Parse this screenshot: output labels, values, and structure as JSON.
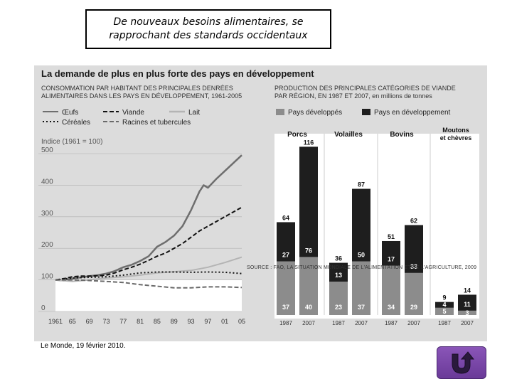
{
  "slide": {
    "title_line1": "De nouveaux besoins alimentaires, se",
    "title_line2": "rapprochant des standards occidentaux",
    "credit": "Le Monde, 19 février 2010.",
    "nav_icon": "u-turn-return-icon"
  },
  "figure": {
    "title": "La demande de plus en plus forte des pays en développement",
    "left_subtitle_line1": "CONSOMMATION PAR HABITANT DES PRINCIPALES DENRÉES",
    "left_subtitle_line2": "ALIMENTAIRES DANS LES PAYS EN DÉVELOPPEMENT, 1961-2005",
    "right_subtitle_line1": "PRODUCTION DES PRINCIPALES CATÉGORIES DE VIANDE",
    "right_subtitle_line2": "PAR RÉGION, EN 1987 ET 2007, en millions de tonnes",
    "source": "SOURCE : FAO, LA SITUATION MONDIALE DE L'ALIMENTATION ET DE L'AGRICULTURE, 2009"
  },
  "colors": {
    "developed": "#8c8c8c",
    "developing": "#1e1e1e",
    "oeufs": "#6e6e6e",
    "viande": "#111111",
    "lait": "#b4b4b4",
    "cereales": "#111111",
    "racines": "#6a6a6a",
    "panel_bg": "#dcdcdc",
    "nav": "#7b4aa8"
  },
  "chart_data": [
    {
      "type": "line",
      "index_label": "Indice (1961 = 100)",
      "x_ticks": [
        "1961",
        "65",
        "69",
        "73",
        "77",
        "81",
        "85",
        "89",
        "93",
        "97",
        "01",
        "05"
      ],
      "ylim": [
        0,
        500
      ],
      "y_ticks": [
        "0",
        "100",
        "200",
        "300",
        "400",
        "500"
      ],
      "legend_position": "top",
      "series": [
        {
          "name": "Œufs",
          "style": "solid",
          "color_key": "oeufs",
          "x": [
            1961,
            1963,
            1965,
            1967,
            1969,
            1971,
            1973,
            1975,
            1977,
            1979,
            1981,
            1983,
            1985,
            1987,
            1989,
            1991,
            1993,
            1995,
            1996,
            1997,
            1999,
            2001,
            2003,
            2005
          ],
          "y": [
            100,
            98,
            104,
            108,
            112,
            115,
            120,
            128,
            140,
            148,
            160,
            175,
            205,
            220,
            240,
            270,
            320,
            380,
            400,
            392,
            420,
            445,
            470,
            495
          ]
        },
        {
          "name": "Viande",
          "style": "dashed",
          "color_key": "viande",
          "x": [
            1961,
            1963,
            1965,
            1967,
            1969,
            1971,
            1973,
            1975,
            1977,
            1979,
            1981,
            1983,
            1985,
            1987,
            1989,
            1991,
            1993,
            1995,
            1997,
            1999,
            2001,
            2003,
            2005
          ],
          "y": [
            100,
            104,
            110,
            112,
            112,
            113,
            115,
            122,
            132,
            140,
            150,
            162,
            175,
            185,
            200,
            215,
            235,
            255,
            270,
            285,
            300,
            315,
            330
          ]
        },
        {
          "name": "Lait",
          "style": "solid",
          "color_key": "lait",
          "x": [
            1961,
            1965,
            1969,
            1973,
            1977,
            1981,
            1985,
            1989,
            1993,
            1997,
            2001,
            2005
          ],
          "y": [
            100,
            95,
            100,
            106,
            110,
            115,
            122,
            126,
            130,
            140,
            155,
            172
          ]
        },
        {
          "name": "Céréales",
          "style": "dotted",
          "color_key": "cereales",
          "x": [
            1961,
            1965,
            1969,
            1973,
            1977,
            1981,
            1985,
            1989,
            1993,
            1997,
            2001,
            2005
          ],
          "y": [
            100,
            106,
            108,
            110,
            115,
            122,
            125,
            125,
            124,
            125,
            124,
            120
          ]
        },
        {
          "name": "Racines et tubercules",
          "style": "dashed",
          "color_key": "racines",
          "x": [
            1961,
            1965,
            1969,
            1973,
            1977,
            1981,
            1985,
            1989,
            1993,
            1997,
            2001,
            2005
          ],
          "y": [
            100,
            100,
            98,
            95,
            92,
            85,
            80,
            75,
            75,
            78,
            78,
            76
          ]
        }
      ]
    },
    {
      "type": "bar",
      "stacked": true,
      "legend": [
        "Pays développés",
        "Pays en développement"
      ],
      "groups": [
        {
          "name": "Porcs",
          "bars": [
            {
              "year": "1987",
              "developed": 37,
              "developing": 27,
              "total": 64
            },
            {
              "year": "2007",
              "developed": 40,
              "developing": 76,
              "total": 116
            }
          ]
        },
        {
          "name": "Volailles",
          "bars": [
            {
              "year": "1987",
              "developed": 23,
              "developing": 13,
              "total": 36
            },
            {
              "year": "2007",
              "developed": 37,
              "developing": 50,
              "total": 87
            }
          ]
        },
        {
          "name": "Bovins",
          "bars": [
            {
              "year": "1987",
              "developed": 34,
              "developing": 17,
              "total": 51
            },
            {
              "year": "2007",
              "developed": 29,
              "developing": 33,
              "total": 62
            }
          ]
        },
        {
          "name_line1": "Moutons",
          "name_line2": "et chèvres",
          "bars": [
            {
              "year": "1987",
              "developed": 5,
              "developing": 4,
              "total": 9
            },
            {
              "year": "2007",
              "developed": 3,
              "developing": 11,
              "total": 14
            }
          ]
        }
      ]
    }
  ]
}
